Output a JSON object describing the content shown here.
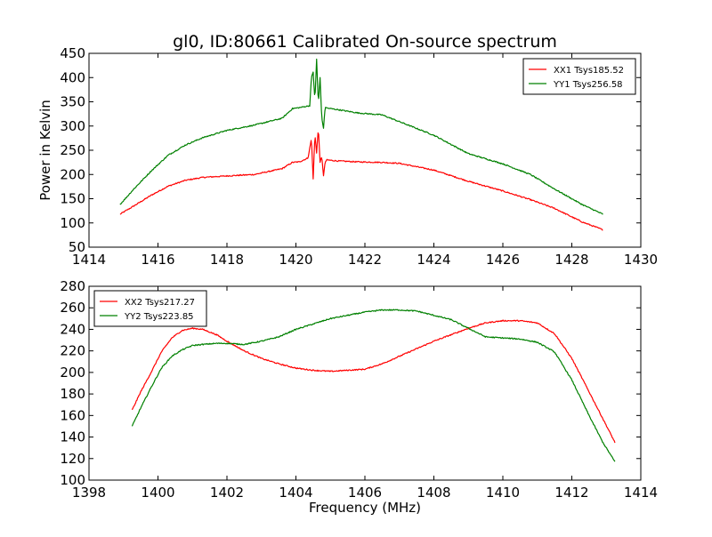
{
  "figure": {
    "title": "gl0, ID:80661 Calibrated On-source spectrum"
  },
  "chart_data": [
    {
      "type": "line",
      "title": "gl0, ID:80661 Calibrated On-source spectrum",
      "xlabel": "",
      "ylabel": "Power in Kelvin",
      "xlim": [
        1414,
        1430
      ],
      "ylim": [
        50,
        450
      ],
      "xticks": [
        1414,
        1416,
        1418,
        1420,
        1422,
        1424,
        1426,
        1428,
        1430
      ],
      "yticks": [
        50,
        100,
        150,
        200,
        250,
        300,
        350,
        400,
        450
      ],
      "grid": false,
      "legend_position": "top-right",
      "series": [
        {
          "name": "XX1 Tsys185.52",
          "color": "#ff0000",
          "x": [
            1414.9,
            1415.3,
            1415.8,
            1416.3,
            1416.8,
            1417.3,
            1418.0,
            1418.8,
            1419.6,
            1419.9,
            1420.1,
            1420.35,
            1420.45,
            1420.5,
            1420.55,
            1420.6,
            1420.65,
            1420.7,
            1420.75,
            1420.8,
            1420.85,
            1420.9,
            1421.2,
            1421.8,
            1422.5,
            1423.0,
            1424.0,
            1425.0,
            1426.0,
            1426.8,
            1427.5,
            1428.3,
            1428.9
          ],
          "y": [
            118,
            135,
            157,
            176,
            188,
            194,
            197,
            200,
            212,
            225,
            226,
            234,
            274,
            190,
            283,
            245,
            296,
            226,
            236,
            198,
            226,
            230,
            228,
            226,
            225,
            223,
            209,
            186,
            166,
            148,
            130,
            102,
            86
          ]
        },
        {
          "name": "YY1 Tsys256.58",
          "color": "#008000",
          "x": [
            1414.9,
            1415.3,
            1415.8,
            1416.3,
            1416.8,
            1417.3,
            1418.0,
            1418.8,
            1419.6,
            1419.9,
            1420.1,
            1420.4,
            1420.45,
            1420.5,
            1420.55,
            1420.6,
            1420.65,
            1420.7,
            1420.75,
            1420.8,
            1420.85,
            1420.9,
            1421.2,
            1421.8,
            1422.5,
            1423.0,
            1424.0,
            1425.0,
            1426.0,
            1426.8,
            1427.5,
            1428.3,
            1428.9
          ],
          "y": [
            138,
            170,
            207,
            240,
            261,
            276,
            291,
            302,
            316,
            336,
            338,
            342,
            400,
            412,
            352,
            438,
            345,
            400,
            315,
            296,
            340,
            337,
            334,
            327,
            323,
            309,
            281,
            243,
            222,
            200,
            170,
            138,
            118
          ]
        }
      ]
    },
    {
      "type": "line",
      "title": "",
      "xlabel": "Frequency (MHz)",
      "ylabel": "",
      "xlim": [
        1398,
        1414
      ],
      "ylim": [
        100,
        280
      ],
      "xticks": [
        1398,
        1400,
        1402,
        1404,
        1406,
        1408,
        1410,
        1412,
        1414
      ],
      "yticks": [
        100,
        120,
        140,
        160,
        180,
        200,
        220,
        240,
        260,
        280
      ],
      "grid": false,
      "legend_position": "top-left",
      "series": [
        {
          "name": "XX2 Tsys217.27",
          "color": "#ff0000",
          "x": [
            1399.25,
            1399.5,
            1399.8,
            1400.1,
            1400.4,
            1400.7,
            1401.0,
            1401.3,
            1401.7,
            1402.0,
            1402.5,
            1403.0,
            1403.5,
            1404.0,
            1404.5,
            1405.0,
            1405.5,
            1406.0,
            1406.5,
            1407.0,
            1407.5,
            1408.0,
            1408.5,
            1409.0,
            1409.5,
            1410.0,
            1410.5,
            1411.0,
            1411.5,
            1412.0,
            1412.5,
            1412.9,
            1413.25
          ],
          "y": [
            165,
            182,
            200,
            219,
            232,
            239,
            241,
            240,
            235,
            229,
            220,
            213,
            208,
            204,
            202,
            201,
            202,
            203,
            208,
            215,
            222,
            229,
            235,
            241,
            246,
            248,
            248,
            246,
            236,
            213,
            182,
            157,
            135
          ]
        },
        {
          "name": "YY2 Tsys223.85",
          "color": "#008000",
          "x": [
            1399.25,
            1399.5,
            1399.8,
            1400.1,
            1400.4,
            1400.7,
            1401.0,
            1401.3,
            1401.7,
            1402.0,
            1402.5,
            1403.0,
            1403.5,
            1404.0,
            1404.5,
            1405.0,
            1405.5,
            1406.0,
            1406.5,
            1407.0,
            1407.5,
            1408.0,
            1408.5,
            1409.0,
            1409.5,
            1410.0,
            1410.5,
            1411.0,
            1411.5,
            1412.0,
            1412.5,
            1412.9,
            1413.25
          ],
          "y": [
            150,
            167,
            186,
            204,
            215,
            221,
            225,
            226,
            227,
            227,
            226,
            229,
            233,
            240,
            245,
            250,
            253,
            256,
            258,
            258,
            257,
            253,
            249,
            241,
            233,
            232,
            231,
            228,
            219,
            193,
            160,
            135,
            117
          ]
        }
      ]
    }
  ]
}
